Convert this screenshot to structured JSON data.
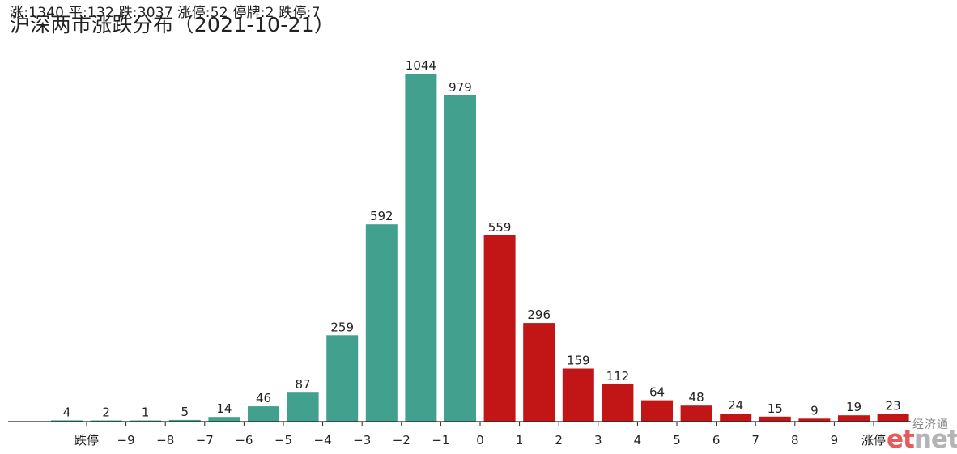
{
  "header": {
    "stats": "涨:1340 平:132 跌:3037 涨停:52 停牌:2 跌停:7"
  },
  "logo": {
    "cn": "经济通",
    "brand_part1": "et",
    "brand_part2": "net"
  },
  "colors": {
    "down": "#41a08e",
    "up": "#c21515",
    "axis": "#222222"
  },
  "chart_data": {
    "type": "bar",
    "title": "沪深两市涨跌分布（2021-10-21）",
    "xlabel": "",
    "ylabel": "",
    "ylim": [
      0,
      1100
    ],
    "grid": false,
    "tick_labels": [
      "跌停",
      "−9",
      "−8",
      "−7",
      "−6",
      "−5",
      "−4",
      "−3",
      "−2",
      "−1",
      "0",
      "1",
      "2",
      "3",
      "4",
      "5",
      "6",
      "7",
      "8",
      "9",
      "涨停"
    ],
    "values": [
      4,
      2,
      1,
      5,
      14,
      46,
      87,
      259,
      592,
      1044,
      979,
      559,
      296,
      159,
      112,
      64,
      48,
      24,
      15,
      9,
      19,
      23
    ],
    "bar_groups": [
      "down",
      "down",
      "down",
      "down",
      "down",
      "down",
      "down",
      "down",
      "down",
      "down",
      "down",
      "up",
      "up",
      "up",
      "up",
      "up",
      "up",
      "up",
      "up",
      "up",
      "up",
      "up"
    ]
  }
}
